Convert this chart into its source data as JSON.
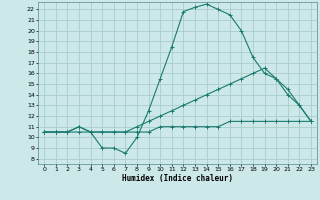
{
  "xlabel": "Humidex (Indice chaleur)",
  "background_color": "#cce8e8",
  "grid_color": "#aacccc",
  "line_color": "#1a7a6e",
  "xlim": [
    -0.5,
    23.5
  ],
  "ylim": [
    7.5,
    22.7
  ],
  "xticks": [
    0,
    1,
    2,
    3,
    4,
    5,
    6,
    7,
    8,
    9,
    10,
    11,
    12,
    13,
    14,
    15,
    16,
    17,
    18,
    19,
    20,
    21,
    22,
    23
  ],
  "yticks": [
    8,
    9,
    10,
    11,
    12,
    13,
    14,
    15,
    16,
    17,
    18,
    19,
    20,
    21,
    22
  ],
  "line1_x": [
    0,
    1,
    2,
    3,
    4,
    5,
    6,
    7,
    8,
    9,
    10,
    11,
    12,
    13,
    14,
    15,
    16,
    17,
    18,
    19,
    20,
    21,
    22,
    23
  ],
  "line1_y": [
    10.5,
    10.5,
    10.5,
    10.5,
    10.5,
    10.5,
    10.5,
    10.5,
    10.5,
    10.5,
    11.0,
    11.0,
    11.0,
    11.0,
    11.0,
    11.0,
    11.5,
    11.5,
    11.5,
    11.5,
    11.5,
    11.5,
    11.5,
    11.5
  ],
  "line2_x": [
    0,
    1,
    2,
    3,
    4,
    5,
    6,
    7,
    8,
    9,
    10,
    11,
    12,
    13,
    14,
    15,
    16,
    17,
    18,
    19,
    20,
    21,
    22,
    23
  ],
  "line2_y": [
    10.5,
    10.5,
    10.5,
    11.0,
    10.5,
    9.0,
    9.0,
    8.5,
    10.0,
    12.5,
    15.5,
    18.5,
    21.8,
    22.2,
    22.5,
    22.0,
    21.5,
    20.0,
    17.5,
    16.0,
    15.5,
    14.5,
    13.0,
    11.5
  ],
  "line3_x": [
    0,
    1,
    2,
    3,
    4,
    5,
    6,
    7,
    8,
    9,
    10,
    11,
    12,
    13,
    14,
    15,
    16,
    17,
    18,
    19,
    20,
    21,
    22,
    23
  ],
  "line3_y": [
    10.5,
    10.5,
    10.5,
    11.0,
    10.5,
    10.5,
    10.5,
    10.5,
    11.0,
    11.5,
    12.0,
    12.5,
    13.0,
    13.5,
    14.0,
    14.5,
    15.0,
    15.5,
    16.0,
    16.5,
    15.5,
    14.0,
    13.0,
    11.5
  ]
}
